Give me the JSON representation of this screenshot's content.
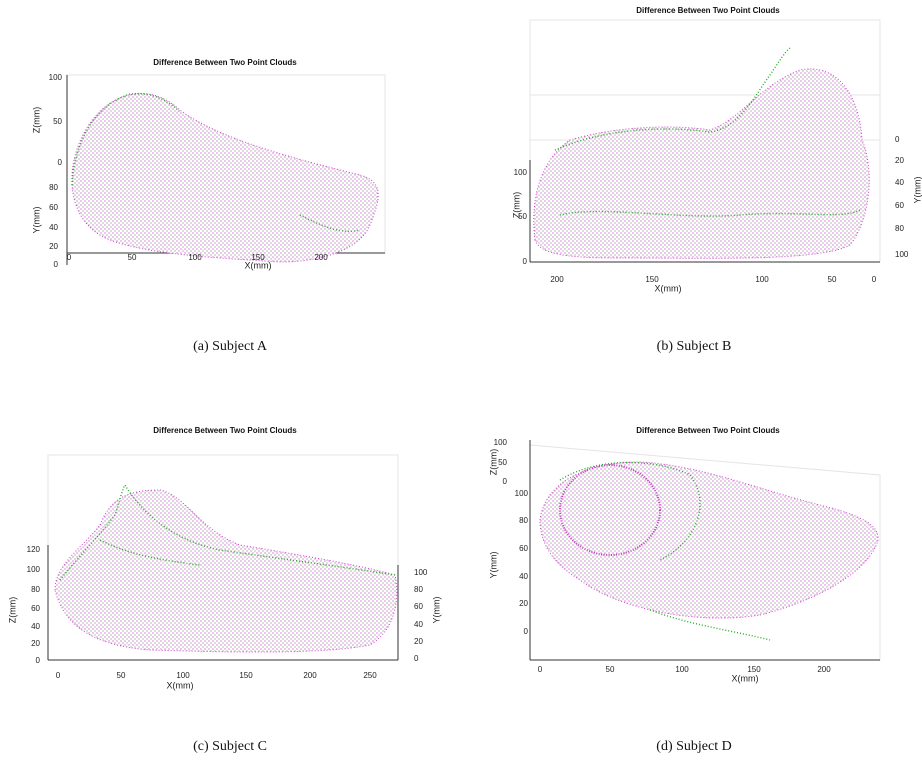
{
  "figure": {
    "panels": [
      {
        "title": "Difference Between Two Point Clouds",
        "caption": "(a)  Subject A",
        "x_label": "X(mm)",
        "y_label": "Y(mm)",
        "z_label": "Z(mm)",
        "x_ticks": [
          0,
          50,
          100,
          150,
          200
        ],
        "y_ticks": [
          80,
          60,
          40,
          20,
          0
        ],
        "z_ticks": [
          100,
          50,
          0
        ]
      },
      {
        "title": "Difference Between Two Point Clouds",
        "caption": "(b)  Subject B",
        "x_label": "X(mm)",
        "y_label": "Y(mm)",
        "z_label": "Z(mm)",
        "x_ticks": [
          200,
          150,
          100,
          50,
          0
        ],
        "y_ticks": [
          0,
          20,
          40,
          60,
          80,
          100
        ],
        "z_ticks": [
          100,
          50,
          0
        ]
      },
      {
        "title": "Difference Between Two Point Clouds",
        "caption": "(c)  Subject C",
        "x_label": "X(mm)",
        "y_label": "Y(mm)",
        "z_label": "Z(mm)",
        "x_ticks": [
          0,
          50,
          100,
          150,
          200,
          250
        ],
        "y_ticks": [
          100,
          80,
          60,
          40,
          20,
          0
        ],
        "z_ticks": [
          120,
          100,
          80,
          60,
          40,
          20,
          0
        ]
      },
      {
        "title": "Difference Between Two Point Clouds",
        "caption": "(d)  Subject D",
        "x_label": "X(mm)",
        "y_label": "Y(mm)",
        "z_label": "Z(mm)",
        "x_ticks": [
          0,
          50,
          100,
          150,
          200
        ],
        "y_ticks": [
          100,
          80,
          60,
          40,
          20,
          0
        ],
        "z_ticks": [
          100,
          50,
          0
        ]
      }
    ]
  }
}
